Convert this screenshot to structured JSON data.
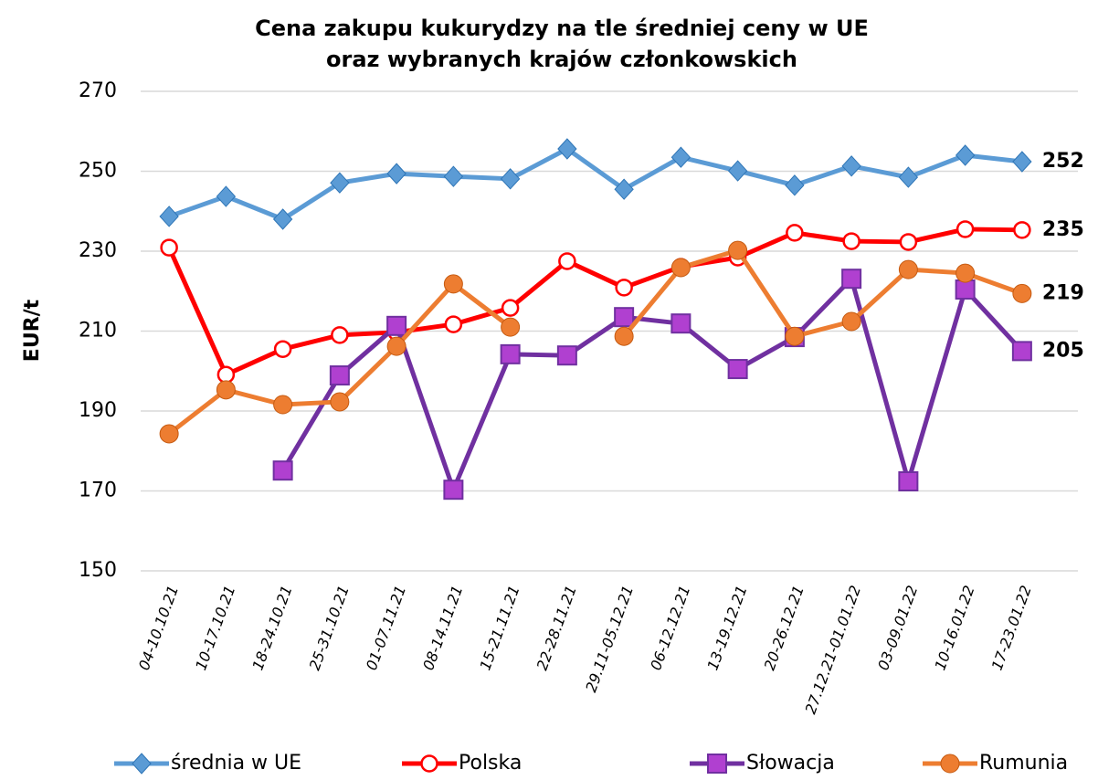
{
  "chart_data": {
    "type": "line",
    "title": [
      "Cena zakupu kukurydzy na tle średniej ceny w UE",
      "oraz wybranych krajów członkowskich"
    ],
    "y_label": "EUR/t",
    "categories": [
      "04-10.10.21",
      "10-17.10.21",
      "18-24.10.21",
      "25-31.10.21",
      "01-07.11.21",
      "08-14.11.21",
      "15-21.11.21",
      "22-28.11.21",
      "29.11-05.12.21",
      "06-12.12.21",
      "13-19.12.21",
      "20-26.12.21",
      "27.12.21-01.01.22",
      "03-09.01.22",
      "10-16.01.22",
      "17-23.01.22"
    ],
    "ylim": [
      150,
      270
    ],
    "yticks": [
      150,
      170,
      190,
      210,
      230,
      250,
      270
    ],
    "grid": true,
    "series": [
      {
        "name": "średnia w UE",
        "color": "#5b9bd5",
        "marker": "diamond",
        "label_color": "#4f81bd",
        "values": [
          238.7,
          243.7,
          238.0,
          247.1,
          249.4,
          248.7,
          248.1,
          255.6,
          245.5,
          253.5,
          250.1,
          246.5,
          251.3,
          248.5,
          254.0,
          252.4
        ],
        "value_labels": [
          null,
          null,
          null,
          null,
          null,
          null,
          null,
          null,
          null,
          null,
          null,
          null,
          null,
          null,
          null,
          "252"
        ]
      },
      {
        "name": "Polska",
        "color": "#ff0000",
        "marker": "circle-open",
        "label_color": "#ff0000",
        "values": [
          230.9,
          199.1,
          205.5,
          209.0,
          209.7,
          211.7,
          215.8,
          227.5,
          220.9,
          226.1,
          228.4,
          234.6,
          232.5,
          232.3,
          235.5,
          235.3
        ],
        "value_labels": [
          null,
          null,
          null,
          null,
          null,
          null,
          null,
          null,
          null,
          null,
          null,
          null,
          null,
          null,
          null,
          "235"
        ]
      },
      {
        "name": "Słowacja",
        "color": "#7030a0",
        "marker": "square",
        "label_color": "#7030a0",
        "values": [
          null,
          null,
          175.1,
          198.9,
          211.3,
          170.3,
          204.2,
          203.9,
          213.5,
          211.9,
          200.5,
          208.5,
          223.1,
          172.4,
          220.4,
          205.0
        ],
        "value_labels": [
          null,
          null,
          null,
          null,
          null,
          null,
          null,
          null,
          null,
          null,
          null,
          null,
          null,
          null,
          null,
          "205"
        ]
      },
      {
        "name": "Rumunia",
        "color": "#ed7d31",
        "marker": "circle",
        "label_color": "#c0504d",
        "values": [
          184.3,
          195.3,
          191.6,
          192.3,
          206.2,
          221.8,
          211.0,
          null,
          208.7,
          225.9,
          230.2,
          208.7,
          212.4,
          225.4,
          224.5,
          219.4
        ],
        "value_labels": [
          null,
          null,
          null,
          null,
          null,
          null,
          null,
          null,
          null,
          null,
          null,
          null,
          null,
          null,
          null,
          "219"
        ]
      }
    ]
  }
}
